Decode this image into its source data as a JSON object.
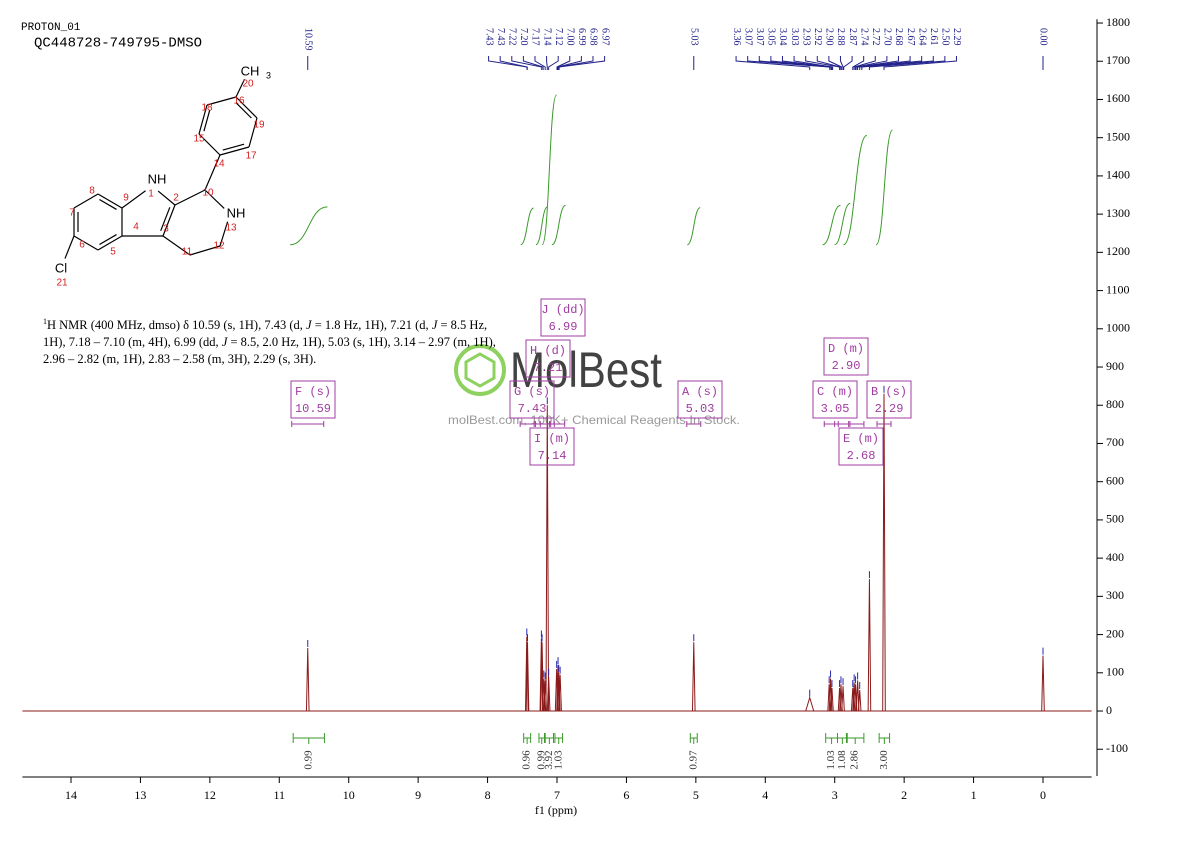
{
  "header": {
    "experiment": "PROTON_01",
    "sample": "QC448728-749795-DMSO"
  },
  "structure": {
    "atom_labels": [
      "NH",
      "NH",
      "CH",
      "3",
      "Cl"
    ],
    "atom_numbers": [
      1,
      2,
      3,
      4,
      5,
      6,
      7,
      8,
      9,
      10,
      11,
      12,
      13,
      14,
      15,
      16,
      17,
      18,
      19,
      20,
      21
    ]
  },
  "description": [
    "1",
    "H NMR (400 MHz, dmso) δ 10.59 (s, 1H), 7.43 (d, ",
    "J",
    " = 1.8 Hz, 1H), 7.21 (d, ",
    "J",
    " = 8.5 Hz, 1H), 7.18 – 7.10 (m, 4H), 6.99 (dd, ",
    "J",
    " = 8.5, 2.0 Hz, 1H), 5.03 (s, 1H), 3.14 – 2.97 (m, 1H), 2.96 – 2.82 (m, 1H), 2.83 – 2.58 (m, 3H), 2.29 (s, 3H)."
  ],
  "watermark": {
    "brand": "MolBest",
    "tagline": "molBest.com, 100K+ Chemical Reagents In Stock."
  },
  "chart_data": {
    "type": "nmr",
    "x_label": "f1 (ppm)",
    "color": "#8b1a1a",
    "xlim": [
      14.7,
      -0.7
    ],
    "xticks": [
      14,
      13,
      12,
      11,
      10,
      9,
      8,
      7,
      6,
      5,
      4,
      3,
      2,
      1,
      0
    ],
    "ylim": [
      -170,
      1810
    ],
    "yticks": [
      -100,
      0,
      100,
      200,
      300,
      400,
      500,
      600,
      700,
      800,
      900,
      1000,
      1100,
      1200,
      1300,
      1400,
      1500,
      1600,
      1700,
      1800
    ],
    "x": [
      10.59,
      7.435,
      7.425,
      7.225,
      7.215,
      7.19,
      7.17,
      7.14,
      7.12,
      7.005,
      6.985,
      6.975,
      6.955,
      5.03,
      3.36,
      3.08,
      3.06,
      3.04,
      2.93,
      2.91,
      2.88,
      2.74,
      2.72,
      2.7,
      2.67,
      2.64,
      2.5,
      2.29,
      0
    ],
    "values": [
      165,
      195,
      180,
      190,
      180,
      85,
      80,
      800,
      90,
      110,
      120,
      100,
      95,
      180,
      35,
      70,
      85,
      60,
      60,
      70,
      65,
      60,
      75,
      70,
      80,
      55,
      345,
      830,
      145
    ],
    "peak_labels": [
      10.59,
      7.43,
      7.43,
      7.22,
      {
        "value": 7.2,
        "label": "7.20"
      },
      7.17,
      7.14,
      7.12,
      {
        "value": 7,
        "label": "7.00"
      },
      6.99,
      6.98,
      6.97,
      5.03,
      3.36,
      3.07,
      3.07,
      3.05,
      3.04,
      3.03,
      2.93,
      2.92,
      {
        "value": 2.9,
        "label": "2.90"
      },
      2.88,
      2.87,
      2.74,
      2.72,
      {
        "value": 2.7,
        "label": "2.70"
      },
      2.68,
      2.67,
      2.64,
      2.61,
      {
        "value": 2.5,
        "label": "2.50"
      },
      2.29,
      {
        "value": 0,
        "label": "0.00"
      }
    ],
    "multiplets": [
      {
        "name": "F (s)",
        "shift": 10.59
      },
      {
        "name": "J (dd)",
        "shift": 6.99
      },
      {
        "name": "H (d)",
        "shift": 7.21
      },
      {
        "name": "G (s)",
        "shift": 7.43
      },
      {
        "name": "I (m)",
        "shift": 7.14
      },
      {
        "name": "A (s)",
        "shift": 5.03
      },
      {
        "name": "D (m)",
        "shift": {
          "value": 2.9,
          "label": "2.90"
        }
      },
      {
        "name": "C (m)",
        "shift": 3.05
      },
      {
        "name": "B (s)",
        "shift": 2.29
      },
      {
        "name": "E (m)",
        "shift": 2.68
      }
    ],
    "integrals": [
      {
        "from": 10.8,
        "to": 10.35,
        "value": 0.99
      },
      {
        "from": 7.48,
        "to": 7.38,
        "value": 0.96
      },
      {
        "from": 7.26,
        "to": 7.18,
        "value": 0.99
      },
      {
        "from": 7.17,
        "to": 7.05,
        "value": 3.92
      },
      {
        "from": 7.03,
        "to": 6.92,
        "value": 1.03
      },
      {
        "from": 5.08,
        "to": 4.98,
        "value": 0.97
      },
      {
        "from": 3.13,
        "to": 2.96,
        "value": 1.03
      },
      {
        "from": 2.96,
        "to": 2.82,
        "value": 1.08
      },
      {
        "from": 2.83,
        "to": 2.58,
        "value": 2.86
      },
      {
        "from": 2.36,
        "to": 2.21,
        "value": {
          "value": 3,
          "label": "3.00"
        }
      }
    ]
  }
}
